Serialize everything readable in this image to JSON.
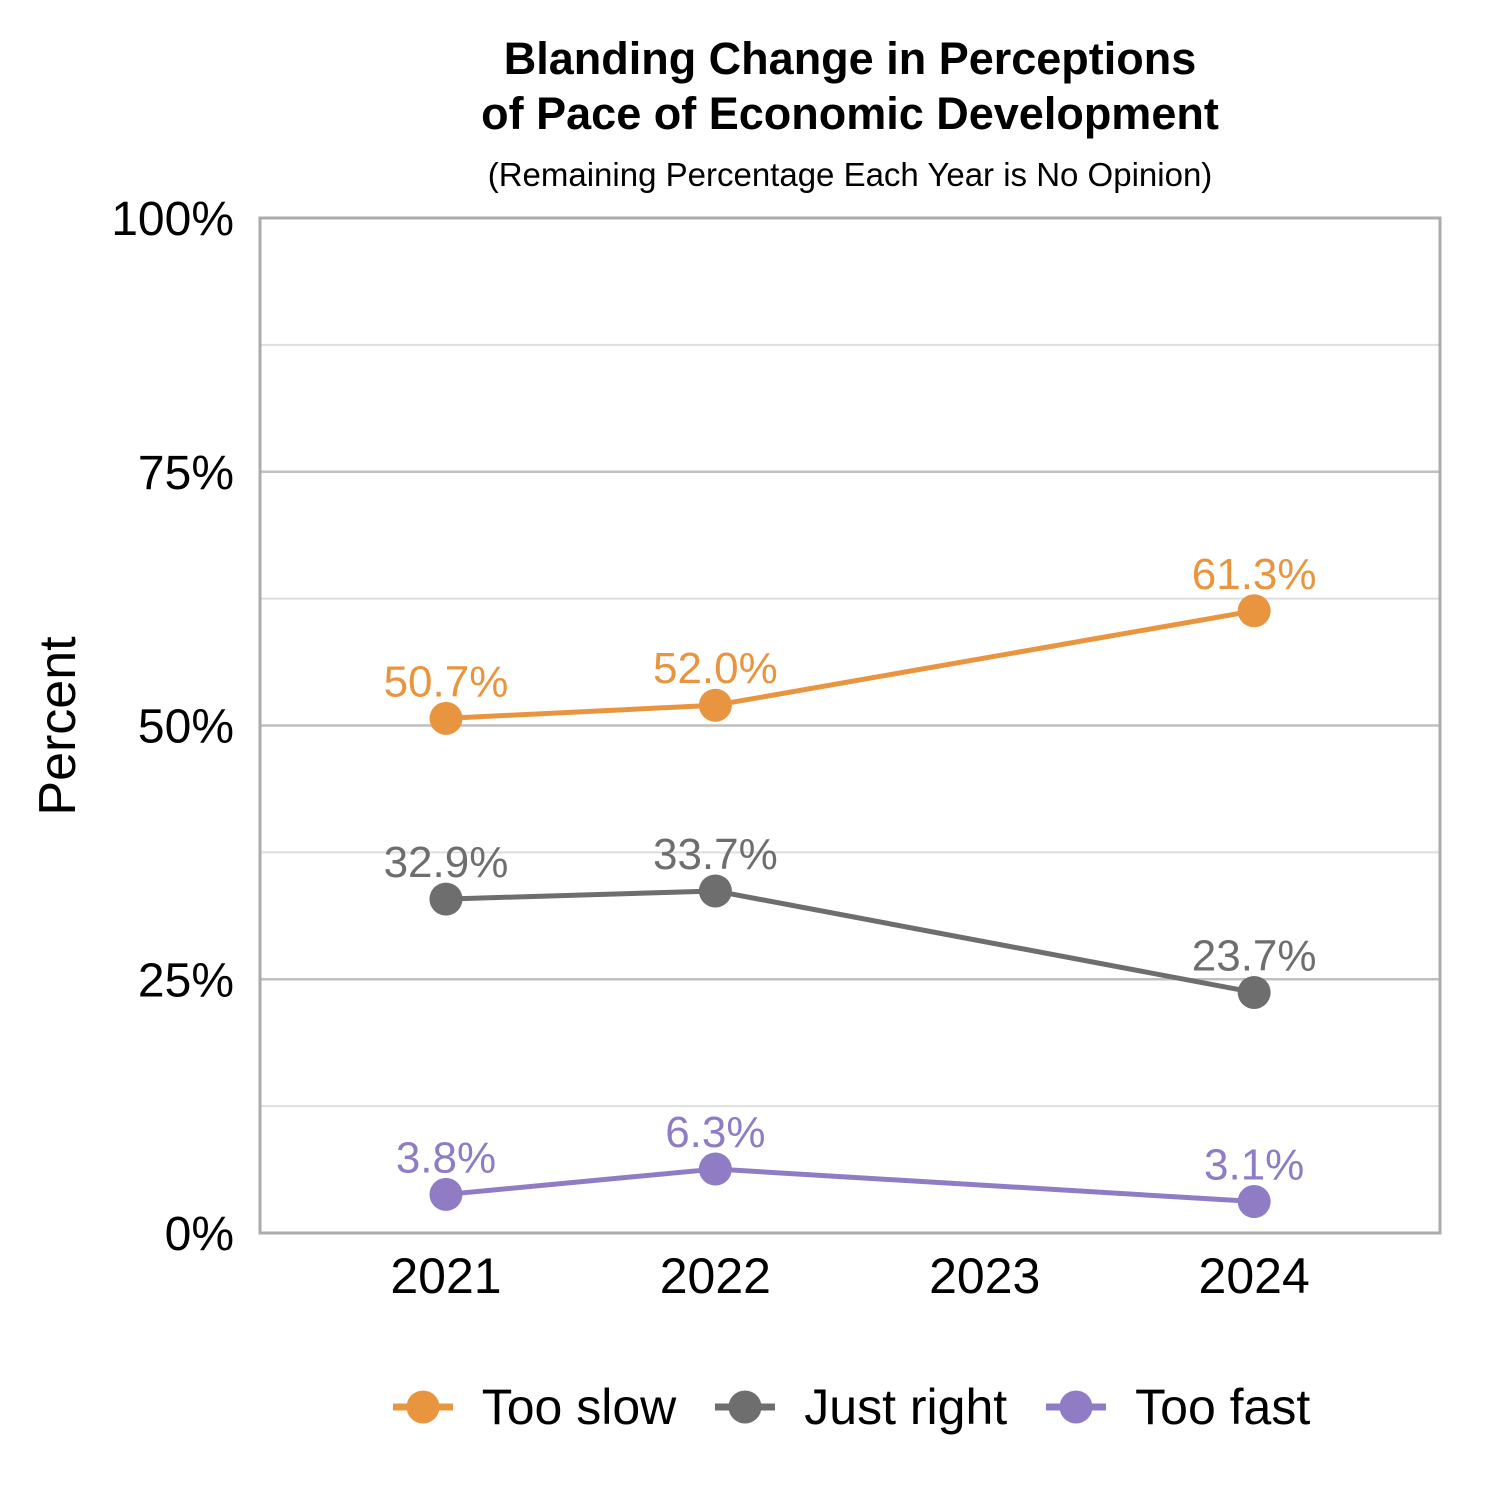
{
  "chart_data": {
    "type": "line",
    "title": "Blanding Change in Perceptions\nof Pace of Economic Development",
    "subtitle": "(Remaining Percentage Each Year is No Opinion)",
    "xlabel": "",
    "ylabel": "Percent",
    "x_categories": [
      "2021",
      "2022",
      "2023",
      "2024"
    ],
    "ylim": [
      0,
      100
    ],
    "y_tick_values": [
      0,
      25,
      50,
      75,
      100
    ],
    "y_tick_labels": [
      "0%",
      "25%",
      "50%",
      "75%",
      "100%"
    ],
    "y_minor_gridlines": [
      12.5,
      37.5,
      62.5,
      87.5
    ],
    "grid": "on",
    "legend_position": "bottom",
    "series": [
      {
        "name": "Too slow",
        "color": "#E9953F",
        "x": [
          "2021",
          "2022",
          "2024"
        ],
        "values": [
          50.7,
          52.0,
          61.3
        ],
        "point_labels": [
          "50.7%",
          "52.0%",
          "61.3%"
        ]
      },
      {
        "name": "Just right",
        "color": "#6E6E6E",
        "x": [
          "2021",
          "2022",
          "2024"
        ],
        "values": [
          32.9,
          33.7,
          23.7
        ],
        "point_labels": [
          "32.9%",
          "33.7%",
          "23.7%"
        ]
      },
      {
        "name": "Too fast",
        "color": "#8F7CC4",
        "x": [
          "2021",
          "2022",
          "2024"
        ],
        "values": [
          3.8,
          6.3,
          3.1
        ],
        "point_labels": [
          "3.8%",
          "6.3%",
          "3.1%"
        ]
      }
    ]
  }
}
